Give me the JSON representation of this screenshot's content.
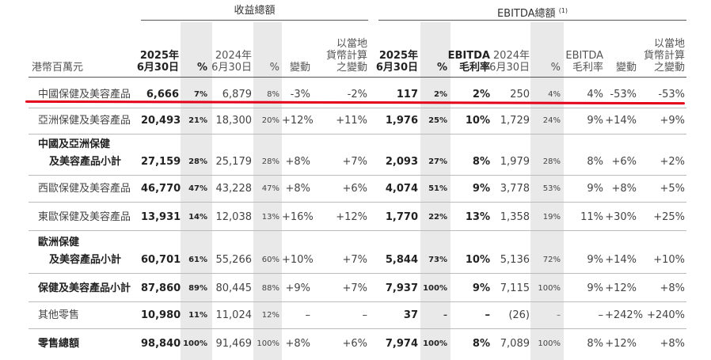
{
  "group_headers": {
    "revenue": "收益總額",
    "ebitda": "EBITDA總額",
    "ebitda_note": "(1)"
  },
  "column_headers": {
    "unit": "港幣百萬元",
    "rev_2025": [
      "2025年",
      "6月30日"
    ],
    "rev_pct1": "%",
    "rev_2024": [
      "2024年",
      "6月30日"
    ],
    "rev_pct2": "%",
    "rev_change": "變動",
    "rev_local": [
      "以當地",
      "貨幣計算",
      "之變動"
    ],
    "eb_2025": [
      "2025年",
      "6月30日"
    ],
    "eb_pct1": "%",
    "eb_margin_2025": [
      "EBITDA",
      "毛利率"
    ],
    "eb_2024": [
      "2024年",
      "6月30日"
    ],
    "eb_pct2": "%",
    "eb_margin_2024": [
      "EBITDA",
      "毛利率"
    ],
    "eb_change": "變動",
    "eb_local": [
      "以當地",
      "貨幣計算",
      "之變動"
    ]
  },
  "rows": [
    {
      "label": [
        "中國保健及美容產品"
      ],
      "bold": false,
      "cells": [
        "6,666",
        "7%",
        "6,879",
        "8%",
        "-3%",
        "-2%",
        "117",
        "2%",
        "2%",
        "250",
        "4%",
        "4%",
        "-53%",
        "-53%"
      ]
    },
    {
      "label": [
        "亞洲保健及美容產品"
      ],
      "bold": false,
      "cells": [
        "20,493",
        "21%",
        "18,300",
        "20%",
        "+12%",
        "+11%",
        "1,976",
        "25%",
        "10%",
        "1,729",
        "24%",
        "9%",
        "+14%",
        "+9%"
      ]
    },
    {
      "label": [
        "中國及亞洲保健",
        "及美容產品小計"
      ],
      "bold": true,
      "cells": [
        "27,159",
        "28%",
        "25,179",
        "28%",
        "+8%",
        "+7%",
        "2,093",
        "27%",
        "8%",
        "1,979",
        "28%",
        "8%",
        "+6%",
        "+2%"
      ]
    },
    {
      "label": [
        "西歐保健及美容產品"
      ],
      "bold": false,
      "cells": [
        "46,770",
        "47%",
        "43,228",
        "47%",
        "+8%",
        "+6%",
        "4,074",
        "51%",
        "9%",
        "3,778",
        "53%",
        "9%",
        "+8%",
        "+5%"
      ]
    },
    {
      "label": [
        "東歐保健及美容產品"
      ],
      "bold": false,
      "cells": [
        "13,931",
        "14%",
        "12,038",
        "13%",
        "+16%",
        "+12%",
        "1,770",
        "22%",
        "13%",
        "1,358",
        "19%",
        "11%",
        "+30%",
        "+25%"
      ]
    },
    {
      "label": [
        "歐洲保健",
        "及美容產品小計"
      ],
      "bold": true,
      "cells": [
        "60,701",
        "61%",
        "55,266",
        "60%",
        "+10%",
        "+7%",
        "5,844",
        "73%",
        "10%",
        "5,136",
        "72%",
        "9%",
        "+14%",
        "+10%"
      ]
    },
    {
      "label": [
        "保健及美容產品小計"
      ],
      "bold": true,
      "cells": [
        "87,860",
        "89%",
        "80,445",
        "88%",
        "+9%",
        "+7%",
        "7,937",
        "100%",
        "9%",
        "7,115",
        "100%",
        "9%",
        "+12%",
        "+8%"
      ]
    },
    {
      "label": [
        "其他零售"
      ],
      "bold": false,
      "cells": [
        "10,980",
        "11%",
        "11,024",
        "12%",
        "–",
        "–",
        "37",
        "–",
        "–",
        "(26)",
        "–",
        "–",
        "+242%",
        "+240%"
      ]
    },
    {
      "label": [
        "零售總額"
      ],
      "bold": true,
      "cells": [
        "98,840",
        "100%",
        "91,469",
        "100%",
        "+8%",
        "+6%",
        "7,974",
        "100%",
        "8%",
        "7,089",
        "100%",
        "8%",
        "+12%",
        "+8%"
      ]
    }
  ]
}
